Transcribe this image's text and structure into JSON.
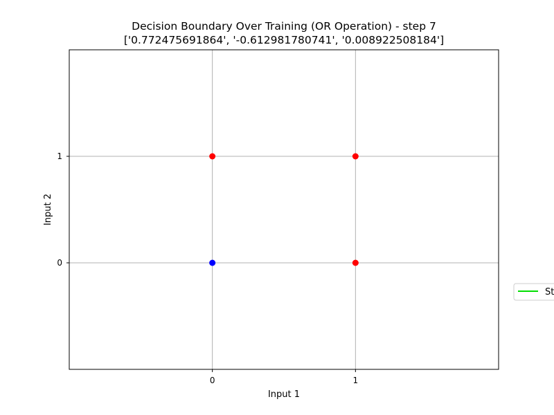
{
  "chart_data": {
    "type": "scatter",
    "title": "Decision Boundary Over Training (OR Operation) - step 7",
    "subtitle": "['0.772475691864', '-0.612981780741', '0.008922508184']",
    "xlabel": "Input 1",
    "ylabel": "Input 2",
    "xlim": [
      -1,
      2
    ],
    "ylim": [
      -1,
      2
    ],
    "xticks": [
      0,
      1
    ],
    "yticks": [
      0,
      1
    ],
    "xtick_labels": [
      "0",
      "1"
    ],
    "ytick_labels": [
      "0",
      "1"
    ],
    "grid": true,
    "points": [
      {
        "x": 0,
        "y": 0,
        "color": "#0000ff"
      },
      {
        "x": 0,
        "y": 1,
        "color": "#ff0000"
      },
      {
        "x": 1,
        "y": 0,
        "color": "#ff0000"
      },
      {
        "x": 1,
        "y": 1,
        "color": "#ff0000"
      }
    ],
    "legend": {
      "placement": "right-outside",
      "entries": [
        {
          "label": "St",
          "color": "#00dd00"
        }
      ]
    }
  }
}
